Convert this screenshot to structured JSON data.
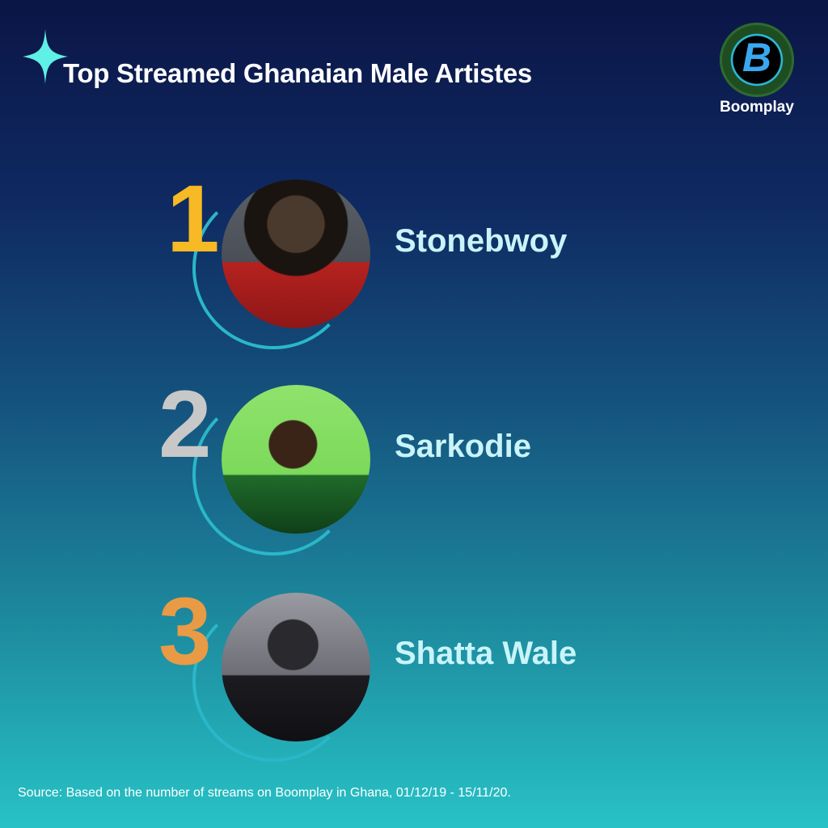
{
  "header": {
    "title": "Top Streamed Ghanaian Male Artistes",
    "sparkle_icon": "four-point-star-icon"
  },
  "logo": {
    "text": "Boomplay",
    "glyph": "B"
  },
  "ranking": [
    {
      "rank": "1",
      "name": "Stonebwoy",
      "rank_color": "#f7b924"
    },
    {
      "rank": "2",
      "name": "Sarkodie",
      "rank_color": "#c8c8c8"
    },
    {
      "rank": "3",
      "name": "Shatta Wale",
      "rank_color": "#e99a45"
    }
  ],
  "footer": {
    "source": "Source: Based on the number of streams on Boomplay in Ghana, 01/12/19 - 15/11/20."
  }
}
